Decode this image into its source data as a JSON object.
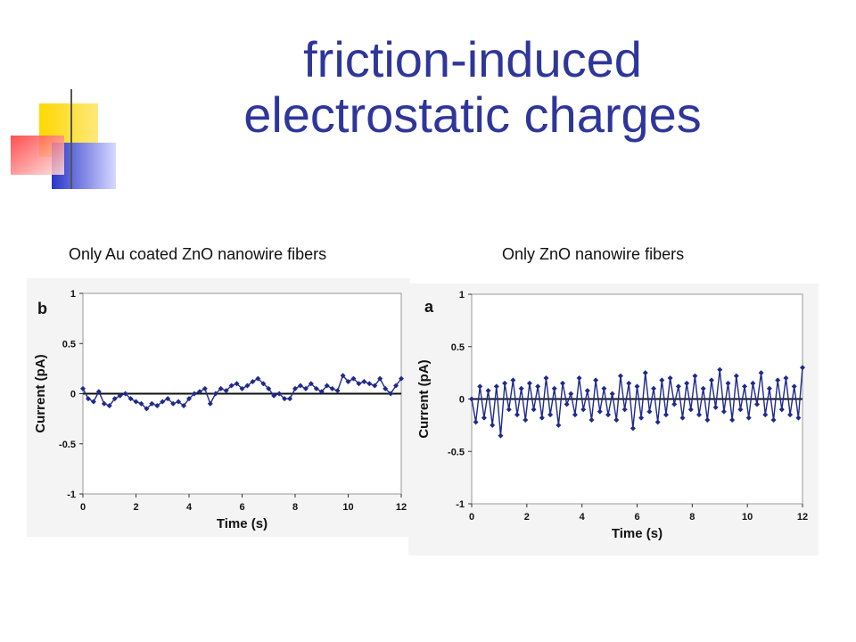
{
  "slide": {
    "title_line1": "friction-induced",
    "title_line2": "electrostatic charges",
    "caption_left": "Only Au coated ZnO nanowire fibers",
    "caption_right": "Only ZnO nanowire fibers"
  },
  "colors": {
    "title": "#2f3699",
    "series": "#1f2a8a",
    "deco_yellow": "#ffd800",
    "deco_blue": "#2a35c8",
    "deco_red": "#ff3b3b"
  },
  "chart_data": [
    {
      "type": "line",
      "panel_label": "b",
      "xlabel": "Time (s)",
      "ylabel": "Current (pA)",
      "xlim": [
        0,
        12
      ],
      "ylim": [
        -1,
        1
      ],
      "xticks": [
        0,
        2,
        4,
        6,
        8,
        10,
        12
      ],
      "yticks": [
        1,
        0.5,
        0,
        -0.5,
        -1
      ],
      "ytick_labels": [
        "1",
        "0.5",
        "0",
        "-0.5",
        "-1"
      ],
      "grid": false,
      "series": [
        {
          "x": [
            0,
            0.2,
            0.4,
            0.6,
            0.8,
            1.0,
            1.2,
            1.4,
            1.6,
            1.8,
            2.0,
            2.2,
            2.4,
            2.6,
            2.8,
            3.0,
            3.2,
            3.4,
            3.6,
            3.8,
            4.0,
            4.2,
            4.4,
            4.6,
            4.8,
            5.0,
            5.2,
            5.4,
            5.6,
            5.8,
            6.0,
            6.2,
            6.4,
            6.6,
            6.8,
            7.0,
            7.2,
            7.4,
            7.6,
            7.8,
            8.0,
            8.2,
            8.4,
            8.6,
            8.8,
            9.0,
            9.2,
            9.4,
            9.6,
            9.8,
            10.0,
            10.2,
            10.4,
            10.6,
            10.8,
            11.0,
            11.2,
            11.4,
            11.6,
            11.8,
            12.0
          ],
          "values": [
            0.05,
            -0.05,
            -0.08,
            0.02,
            -0.1,
            -0.12,
            -0.05,
            -0.02,
            0.0,
            -0.05,
            -0.08,
            -0.1,
            -0.15,
            -0.1,
            -0.12,
            -0.08,
            -0.05,
            -0.1,
            -0.08,
            -0.12,
            -0.05,
            0.0,
            0.02,
            0.05,
            -0.1,
            0.0,
            0.05,
            0.03,
            0.08,
            0.1,
            0.05,
            0.08,
            0.12,
            0.15,
            0.1,
            0.05,
            -0.02,
            0.0,
            -0.05,
            -0.05,
            0.05,
            0.08,
            0.05,
            0.1,
            0.05,
            0.02,
            0.08,
            0.05,
            0.03,
            0.18,
            0.12,
            0.15,
            0.1,
            0.12,
            0.1,
            0.08,
            0.15,
            0.05,
            0.0,
            0.08,
            0.15
          ]
        }
      ]
    },
    {
      "type": "line",
      "panel_label": "a",
      "xlabel": "Time (s)",
      "ylabel": "Current (pA)",
      "xlim": [
        0,
        12
      ],
      "ylim": [
        -1,
        1
      ],
      "xticks": [
        0,
        2,
        4,
        6,
        8,
        10,
        12
      ],
      "yticks": [
        1,
        0.5,
        0,
        -0.5,
        -1
      ],
      "ytick_labels": [
        "1",
        "0.5",
        "0",
        "-0.5",
        "-1"
      ],
      "grid": false,
      "series": [
        {
          "x": [
            0,
            0.15,
            0.3,
            0.45,
            0.6,
            0.75,
            0.9,
            1.05,
            1.2,
            1.35,
            1.5,
            1.65,
            1.8,
            1.95,
            2.1,
            2.25,
            2.4,
            2.55,
            2.7,
            2.85,
            3.0,
            3.15,
            3.3,
            3.45,
            3.6,
            3.75,
            3.9,
            4.05,
            4.2,
            4.35,
            4.5,
            4.65,
            4.8,
            4.95,
            5.1,
            5.25,
            5.4,
            5.55,
            5.7,
            5.85,
            6.0,
            6.15,
            6.3,
            6.45,
            6.6,
            6.75,
            6.9,
            7.05,
            7.2,
            7.35,
            7.5,
            7.65,
            7.8,
            7.95,
            8.1,
            8.25,
            8.4,
            8.55,
            8.7,
            8.85,
            9.0,
            9.15,
            9.3,
            9.45,
            9.6,
            9.75,
            9.9,
            10.05,
            10.2,
            10.35,
            10.5,
            10.65,
            10.8,
            10.95,
            11.1,
            11.25,
            11.4,
            11.55,
            11.7,
            11.85,
            12.0
          ],
          "values": [
            0.0,
            -0.22,
            0.12,
            -0.18,
            0.08,
            -0.25,
            0.12,
            -0.35,
            0.15,
            -0.1,
            0.18,
            -0.15,
            0.1,
            -0.2,
            0.15,
            -0.1,
            0.12,
            -0.18,
            0.2,
            -0.15,
            0.1,
            -0.25,
            0.15,
            -0.05,
            0.05,
            -0.15,
            0.2,
            -0.1,
            0.08,
            -0.2,
            0.18,
            -0.12,
            0.1,
            -0.15,
            0.05,
            -0.2,
            0.22,
            -0.1,
            0.15,
            -0.28,
            0.12,
            -0.18,
            0.25,
            -0.12,
            0.1,
            -0.22,
            0.18,
            -0.15,
            0.2,
            -0.05,
            0.12,
            -0.18,
            0.15,
            -0.1,
            0.22,
            -0.15,
            0.1,
            -0.2,
            0.18,
            -0.08,
            0.28,
            -0.12,
            0.15,
            -0.2,
            0.22,
            -0.1,
            0.12,
            -0.18,
            0.15,
            -0.05,
            0.25,
            -0.15,
            0.1,
            -0.2,
            0.18,
            -0.1,
            0.2,
            -0.15,
            0.12,
            -0.18,
            0.3
          ]
        }
      ]
    }
  ]
}
